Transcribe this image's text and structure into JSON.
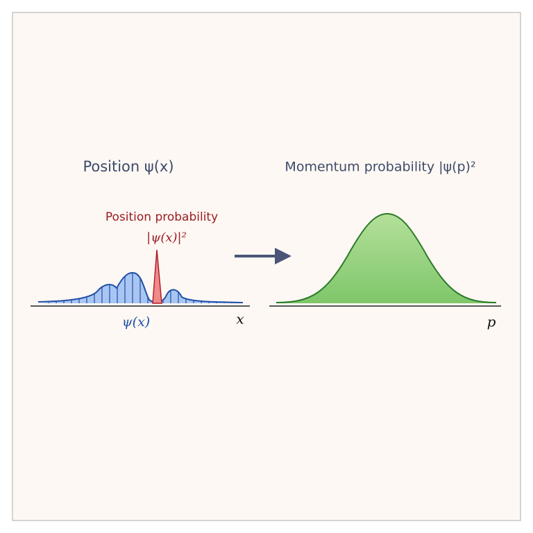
{
  "left_panel": {
    "title": "Position ψ(x)",
    "peak_label": "Position probability",
    "peak_formula": "|ψ(x)|²",
    "wave_label": "ψ(x)",
    "axis_label": "x"
  },
  "right_panel": {
    "title": "Momentum probability |ψ(p)²",
    "axis_label": "p"
  }
}
